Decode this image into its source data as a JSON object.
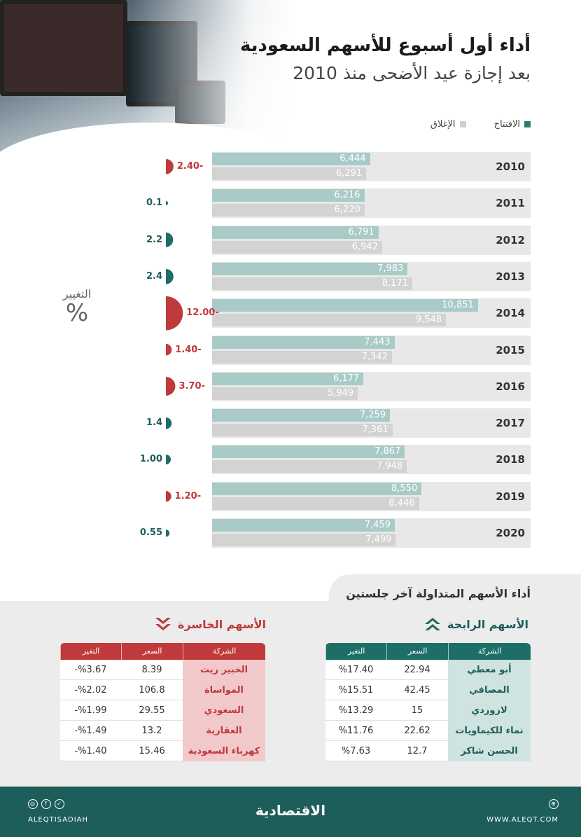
{
  "header": {
    "title": "أداء أول أسبوع للأسهم السعودية",
    "subtitle": "بعد إجازة عيد الأضحى منذ 2010"
  },
  "legend": {
    "open": "الافتتاح",
    "close": "الإغلاق"
  },
  "change_axis": {
    "title": "التغيير",
    "unit": "%"
  },
  "colors": {
    "open": "#a9cbc8",
    "close": "#d3d3d3",
    "positive": "#1e6e68",
    "negative": "#c0393b"
  },
  "chart_data": {
    "type": "bar",
    "categories": [
      "2010",
      "2011",
      "2012",
      "2013",
      "2014",
      "2015",
      "2016",
      "2017",
      "2018",
      "2019",
      "2020"
    ],
    "series": [
      {
        "name": "الافتتاح",
        "values": [
          6444,
          6216,
          6791,
          7983,
          10851,
          7443,
          6177,
          7259,
          7867,
          8550,
          7459
        ]
      },
      {
        "name": "الإغلاق",
        "values": [
          6291,
          6220,
          6942,
          8171,
          9548,
          7342,
          5949,
          7361,
          7948,
          8446,
          7499
        ]
      }
    ],
    "value_labels": {
      "open": [
        "6,444",
        "6,216",
        "6,791",
        "7,983",
        "10,851",
        "7,443",
        "6,177",
        "7,259",
        "7,867",
        "8,550",
        "7,459"
      ],
      "close": [
        "6,291",
        "6,220",
        "6,942",
        "8,171",
        "9,548",
        "7,342",
        "5,949",
        "7,361",
        "7,948",
        "8,446",
        "7,499"
      ]
    },
    "change_values": [
      -2.4,
      0.1,
      2.2,
      2.4,
      -12.0,
      -1.4,
      -3.7,
      1.4,
      1.0,
      -1.2,
      0.55
    ],
    "change_labels": [
      "2.40-",
      "0.1",
      "2.2",
      "2.4",
      "12.00-",
      "1.40-",
      "3.70-",
      "1.4",
      "1.00",
      "1.20-",
      "0.55"
    ],
    "xlim": [
      0,
      13000
    ]
  },
  "bottom": {
    "section_title": "أداء الأسهم المتداولة آخر جلستين",
    "gainers": {
      "title": "الأسهم الرابحة",
      "headers": {
        "company": "الشركة",
        "price": "السعر",
        "change": "التغير"
      },
      "rows": [
        {
          "company": "أبو معطي",
          "price": "22.94",
          "change": "%17.40"
        },
        {
          "company": "المصافي",
          "price": "42.45",
          "change": "%15.51"
        },
        {
          "company": "لازوردي",
          "price": "15",
          "change": "%13.29"
        },
        {
          "company": "نماء للكيماويات",
          "price": "22.62",
          "change": "%11.76"
        },
        {
          "company": "الحسن شاكر",
          "price": "12.7",
          "change": "%7.63"
        }
      ]
    },
    "losers": {
      "title": "الأسهم الخاسرة",
      "headers": {
        "company": "الشركة",
        "price": "السعر",
        "change": "التغير"
      },
      "rows": [
        {
          "company": "الخبير ريت",
          "price": "8.39",
          "change": "%3.67-"
        },
        {
          "company": "المواساة",
          "price": "106.8",
          "change": "%2.02-"
        },
        {
          "company": "السعودي الفرنسي",
          "price": "29.55",
          "change": "%1.99-"
        },
        {
          "company": "العقارية",
          "price": "13.2",
          "change": "%1.49-"
        },
        {
          "company": "كهرباء السعودية",
          "price": "15.46",
          "change": "%1.40-"
        }
      ]
    }
  },
  "footer": {
    "brand": "الاقتصادية",
    "handle": "ALEQTISADIAH",
    "website": "WWW.ALEQT.COM"
  }
}
